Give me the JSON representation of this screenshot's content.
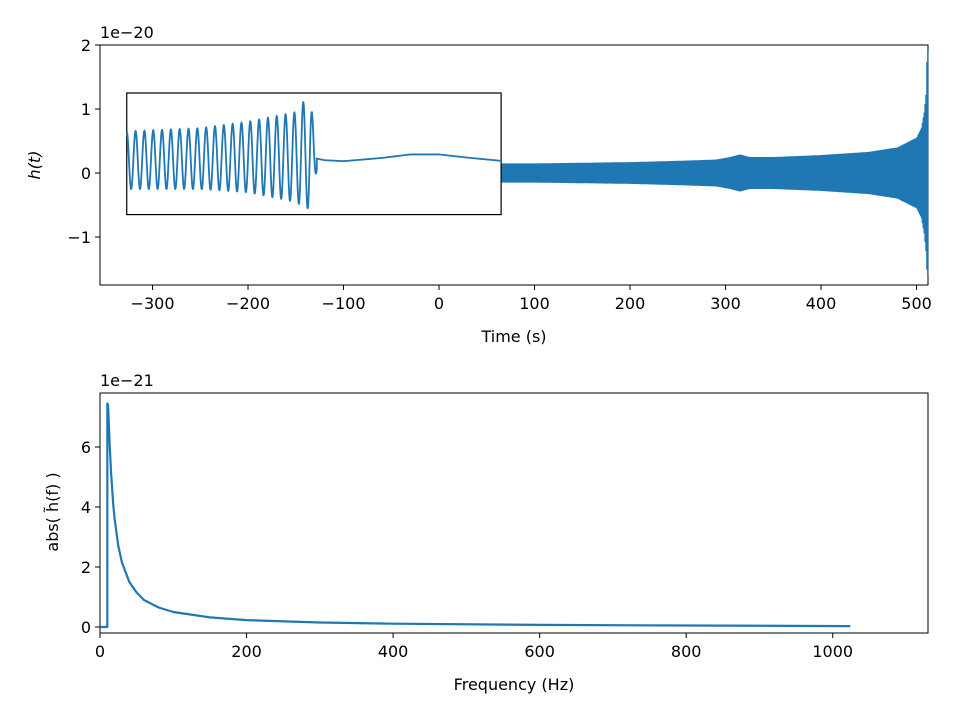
{
  "chart_data": [
    {
      "type": "line",
      "xlabel": "Time (s)",
      "ylabel": "h(t)",
      "offset_text": "1e−20",
      "xlim": [
        -355,
        512
      ],
      "ylim": [
        -1.75,
        2.0
      ],
      "x_ticks": [
        -300,
        -200,
        -100,
        0,
        100,
        200,
        300,
        400,
        500
      ],
      "x_tick_labels": [
        "−300",
        "−200",
        "−100",
        "0",
        "100",
        "200",
        "300",
        "400",
        "500"
      ],
      "y_ticks": [
        -1,
        0,
        1,
        2
      ],
      "y_tick_labels": [
        "−1",
        "0",
        "1",
        "2"
      ],
      "grid": false,
      "series": [
        {
          "color": "#1f77b4",
          "envelope": {
            "x": [
              65,
              100,
              150,
              200,
              250,
              290,
              305,
              315,
              325,
              350,
              400,
              450,
              480,
              500,
              505,
              508,
              510,
              511,
              512
            ],
            "upper": [
              0.15,
              0.15,
              0.16,
              0.17,
              0.19,
              0.21,
              0.25,
              0.29,
              0.25,
              0.25,
              0.28,
              0.33,
              0.4,
              0.55,
              0.7,
              0.95,
              1.25,
              1.9,
              1.9
            ],
            "lower": [
              -0.15,
              -0.15,
              -0.16,
              -0.17,
              -0.19,
              -0.21,
              -0.25,
              -0.29,
              -0.25,
              -0.25,
              -0.28,
              -0.33,
              -0.4,
              -0.55,
              -0.7,
              -0.95,
              -1.25,
              -1.6,
              -1.6
            ]
          }
        }
      ],
      "inset": {
        "domain_x": [
          -327,
          65
        ],
        "domain_y": [
          -0.65,
          1.25
        ],
        "description_values": {
          "x": [
            -327,
            -250,
            -200,
            -150,
            -140,
            -135,
            -128,
            -120,
            -100,
            -60,
            -30,
            0,
            30,
            65
          ],
          "upper": [
            0.65,
            0.7,
            0.8,
            0.95,
            1.15,
            1.15,
            0.4,
            0.25,
            0.2,
            0.25,
            0.3,
            0.3,
            0.25,
            0.2
          ],
          "lower": [
            -0.25,
            -0.25,
            -0.3,
            -0.45,
            -0.55,
            -0.55,
            0.05,
            0.15,
            0.17,
            0.22,
            0.28,
            0.28,
            0.23,
            0.18
          ]
        }
      }
    },
    {
      "type": "line",
      "xlabel": "Frequency (Hz)",
      "ylabel": "abs( h̃(f) )",
      "offset_text": "1e−21",
      "xlim": [
        0,
        1130
      ],
      "ylim": [
        -0.2,
        7.8
      ],
      "x_ticks": [
        0,
        200,
        400,
        600,
        800,
        1000
      ],
      "x_tick_labels": [
        "0",
        "200",
        "400",
        "600",
        "800",
        "1000"
      ],
      "y_ticks": [
        0,
        2,
        4,
        6
      ],
      "y_tick_labels": [
        "0",
        "2",
        "4",
        "6"
      ],
      "grid": false,
      "series": [
        {
          "color": "#1f77b4",
          "x": [
            0,
            10,
            10,
            11,
            13,
            15,
            18,
            20,
            25,
            30,
            40,
            50,
            60,
            80,
            100,
            150,
            200,
            300,
            400,
            600,
            800,
            1024
          ],
          "values": [
            0,
            0,
            7.45,
            7.4,
            6.2,
            5.2,
            4.1,
            3.6,
            2.7,
            2.15,
            1.5,
            1.15,
            0.9,
            0.65,
            0.5,
            0.32,
            0.23,
            0.15,
            0.11,
            0.07,
            0.05,
            0.03
          ]
        }
      ]
    }
  ]
}
